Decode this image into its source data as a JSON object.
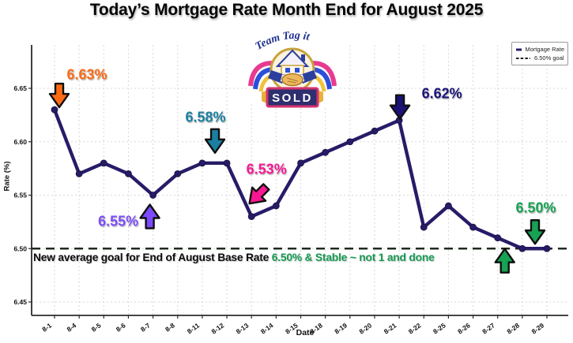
{
  "title": "Today’s Mortgage Rate Month End for August 2025",
  "logo": {
    "arc_text": "Team Tag it",
    "banner_text": "SOLD"
  },
  "legend": {
    "mortgage_rate": "Mortgage Rate",
    "goal": "6.50% goal"
  },
  "axes": {
    "x_label": "Date",
    "y_label": "Rate (%)"
  },
  "goal_note": {
    "prefix": "New average goal for End of August Base Rate ",
    "highlight": "6.50% & Stable ~ not 1 and done",
    "highlight_color": "#169B53"
  },
  "chart_data": {
    "type": "line",
    "title": "Today’s Mortgage Rate Month End for August 2025",
    "xlabel": "Date",
    "ylabel": "Rate (%)",
    "x": [
      "8-1",
      "8-4",
      "8-5",
      "8-6",
      "8-7",
      "8-8",
      "8-11",
      "8-12",
      "8-13",
      "8-14",
      "8-15",
      "8-18",
      "8-19",
      "8-20",
      "8-21",
      "8-22",
      "8-25",
      "8-26",
      "8-27",
      "8-28",
      "8-29"
    ],
    "series": [
      {
        "name": "Mortgage Rate",
        "color": "#261C68",
        "values": [
          6.63,
          6.57,
          6.58,
          6.57,
          6.55,
          6.57,
          6.58,
          6.58,
          6.53,
          6.54,
          6.58,
          6.59,
          6.6,
          6.61,
          6.62,
          6.52,
          6.54,
          6.52,
          6.51,
          6.5,
          6.5
        ]
      }
    ],
    "goal_line": {
      "label": "6.50% goal",
      "value": 6.5,
      "color": "#1F2A1F"
    },
    "ylim": [
      6.43,
      6.69
    ],
    "yticks": [
      "6.45",
      "6.50",
      "6.55",
      "6.60",
      "6.65"
    ],
    "grid": true,
    "legend_position": "top-right",
    "annotations": [
      {
        "label": "6.63%",
        "color": "#FF6A13",
        "dir": "down",
        "point": "8-1",
        "arrow_dx": 6,
        "arrow_dy": -18,
        "text_dx": 41,
        "text_dy": -44
      },
      {
        "label": "6.55%",
        "color": "#7C4BFF",
        "dir": "up",
        "point": "8-7",
        "arrow_dx": -4,
        "arrow_dy": 27,
        "text_dx": -44,
        "text_dy": 33
      },
      {
        "label": "6.58%",
        "color": "#1A7FA0",
        "dir": "down",
        "point": "8-12",
        "arrow_dx": -15,
        "arrow_dy": -28,
        "text_dx": -27,
        "text_dy": -58
      },
      {
        "label": "6.53%",
        "color": "#FA1793",
        "dir": "down-left",
        "point": "8-13",
        "arrow_dx": 8,
        "arrow_dy": -27,
        "text_dx": 19,
        "text_dy": -60
      },
      {
        "label": "6.62%",
        "color": "#1A1278",
        "dir": "down",
        "point": "8-21",
        "arrow_dx": 1,
        "arrow_dy": -17,
        "text_dx": 54,
        "text_dy": -34
      },
      {
        "label": "6.50%",
        "color": "#16A353",
        "dir": "down",
        "point": "8-29",
        "arrow_dx": -15,
        "arrow_dy": -21,
        "text_dx": -14,
        "text_dy": -51
      }
    ],
    "goal_note_arrow": {
      "dir": "up",
      "point": "8-27",
      "dx": 9,
      "dy": 29,
      "color": "#16A353"
    }
  }
}
